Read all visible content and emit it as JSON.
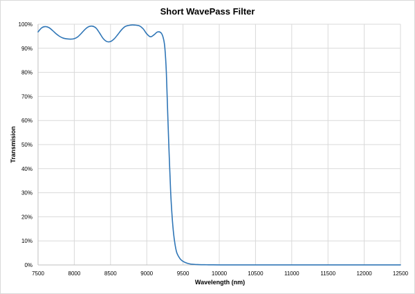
{
  "chart_data": {
    "type": "line",
    "title": "Short WavePass Filter",
    "xlabel": "Wavelength (nm)",
    "ylabel": "Transmision",
    "xlim": [
      7500,
      12500
    ],
    "ylim": [
      0,
      100
    ],
    "x_ticks": [
      "7500",
      "8000",
      "8500",
      "9000",
      "9500",
      "10000",
      "10500",
      "11000",
      "11500",
      "12000",
      "12500"
    ],
    "y_ticks": [
      "0%",
      "10%",
      "20%",
      "30%",
      "40%",
      "50%",
      "60%",
      "70%",
      "80%",
      "90%",
      "100%"
    ],
    "grid": true,
    "legend": "none",
    "colors": {
      "line": "#2e75b6",
      "grid": "#d9d9d9",
      "axis": "#bfbfbf"
    },
    "series": [
      {
        "x": [
          7500,
          7550,
          7600,
          7650,
          7700,
          7750,
          7800,
          7850,
          7900,
          7950,
          8000,
          8050,
          8100,
          8150,
          8200,
          8250,
          8300,
          8350,
          8400,
          8450,
          8500,
          8550,
          8600,
          8650,
          8700,
          8750,
          8800,
          8850,
          8900,
          8950,
          9000,
          9050,
          9100,
          9150,
          9200,
          9230,
          9250,
          9270,
          9290,
          9310,
          9330,
          9350,
          9370,
          9390,
          9410,
          9430,
          9450,
          9470,
          9500,
          9550,
          9600,
          9650,
          9700,
          9750,
          9800,
          9850,
          9900,
          10000,
          10500,
          11000,
          11500,
          12000,
          12500
        ],
        "y": [
          96.8,
          98.5,
          99.0,
          98.6,
          97.4,
          96.0,
          94.9,
          94.2,
          93.9,
          93.8,
          94.0,
          94.8,
          96.3,
          97.9,
          99.0,
          99.2,
          98.4,
          96.3,
          94.0,
          92.8,
          92.8,
          93.9,
          95.7,
          97.6,
          99.0,
          99.5,
          99.7,
          99.6,
          99.3,
          98.1,
          96.0,
          94.8,
          95.6,
          96.8,
          96.3,
          94.0,
          90.0,
          80.0,
          62.0,
          45.0,
          30.0,
          20.0,
          13.0,
          8.5,
          5.5,
          4.0,
          3.0,
          2.2,
          1.5,
          0.8,
          0.4,
          0.25,
          0.15,
          0.1,
          0.08,
          0.06,
          0.05,
          0.03,
          0.02,
          0.02,
          0.02,
          0.02,
          0.02
        ]
      }
    ]
  }
}
